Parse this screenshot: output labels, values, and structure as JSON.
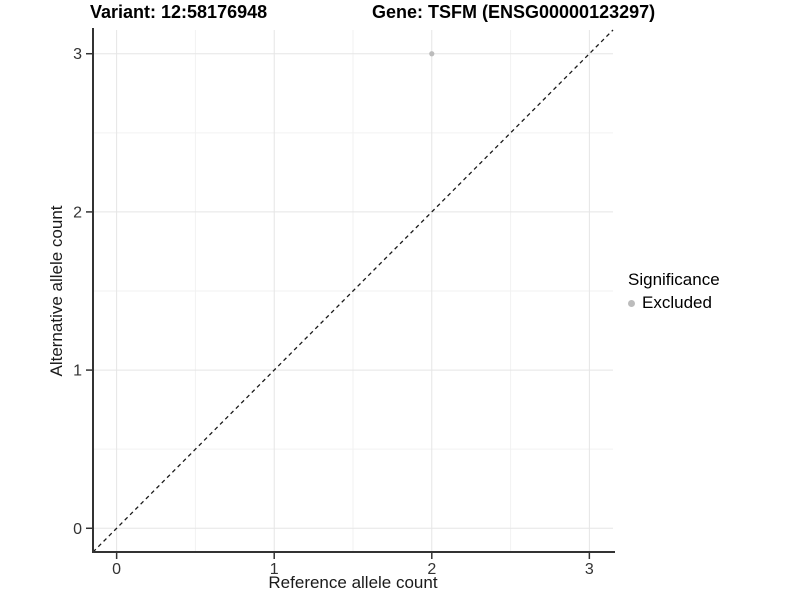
{
  "chart_data": {
    "type": "scatter",
    "title_left": "Variant: 12:58176948",
    "title_right": "Gene: TSFM (ENSG00000123297)",
    "xlabel": "Reference allele count",
    "ylabel": "Alternative allele count",
    "xlim": [
      -0.15,
      3.15
    ],
    "ylim": [
      -0.15,
      3.15
    ],
    "x_major_ticks": [
      0,
      1,
      2,
      3
    ],
    "y_major_ticks": [
      0,
      1,
      2,
      3
    ],
    "x_minor_ticks": [
      0.5,
      1.5,
      2.5
    ],
    "y_minor_ticks": [
      0.5,
      1.5,
      2.5
    ],
    "grid": true,
    "reference_line": {
      "type": "identity",
      "style": "dashed",
      "color": "#1a1a1a"
    },
    "series": [
      {
        "name": "Excluded",
        "color": "#bcbcbc",
        "points": [
          {
            "x": 2,
            "y": 3
          }
        ]
      }
    ],
    "legend": {
      "title": "Significance",
      "position": "right",
      "items": [
        {
          "label": "Excluded",
          "color": "#bcbcbc"
        }
      ]
    },
    "colors": {
      "grid_major": "#e5e5e5",
      "grid_minor": "#f2f2f2",
      "axis_line": "#333333",
      "tick_mark": "#333333",
      "tick_label": "#333333"
    }
  }
}
